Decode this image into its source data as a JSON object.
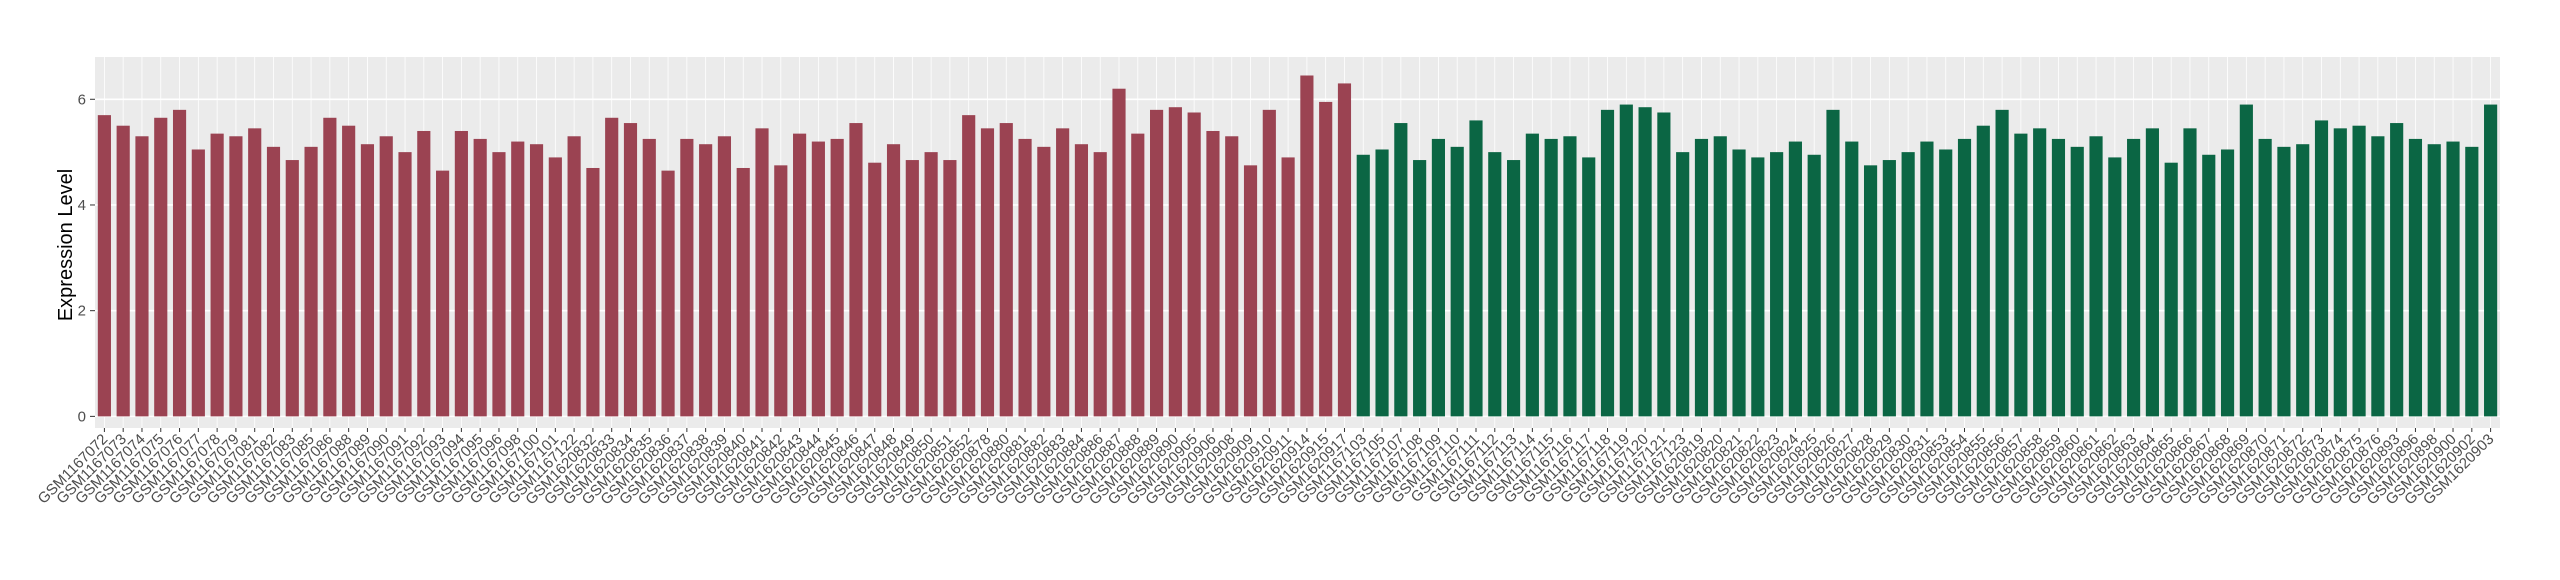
{
  "chart_data": {
    "type": "bar",
    "y_label": "Expression Level",
    "categories": [
      "GSM1167072",
      "GSM1167073",
      "GSM1167074",
      "GSM1167075",
      "GSM1167076",
      "GSM1167077",
      "GSM1167078",
      "GSM1167079",
      "GSM1167081",
      "GSM1167082",
      "GSM1167083",
      "GSM1167085",
      "GSM1167086",
      "GSM1167088",
      "GSM1167089",
      "GSM1167090",
      "GSM1167091",
      "GSM1167092",
      "GSM1167093",
      "GSM1167094",
      "GSM1167095",
      "GSM1167096",
      "GSM1167098",
      "GSM1167100",
      "GSM1167101",
      "GSM1167122",
      "GSM1620832",
      "GSM1620833",
      "GSM1620834",
      "GSM1620835",
      "GSM1620836",
      "GSM1620837",
      "GSM1620838",
      "GSM1620839",
      "GSM1620840",
      "GSM1620841",
      "GSM1620842",
      "GSM1620843",
      "GSM1620844",
      "GSM1620845",
      "GSM1620846",
      "GSM1620847",
      "GSM1620848",
      "GSM1620849",
      "GSM1620850",
      "GSM1620851",
      "GSM1620852",
      "GSM1620878",
      "GSM1620880",
      "GSM1620881",
      "GSM1620882",
      "GSM1620883",
      "GSM1620884",
      "GSM1620886",
      "GSM1620887",
      "GSM1620888",
      "GSM1620889",
      "GSM1620890",
      "GSM1620905",
      "GSM1620906",
      "GSM1620908",
      "GSM1620909",
      "GSM1620910",
      "GSM1620911",
      "GSM1620914",
      "GSM1620915",
      "GSM1620917",
      "GSM1167103",
      "GSM1167105",
      "GSM1167107",
      "GSM1167108",
      "GSM1167109",
      "GSM1167110",
      "GSM1167111",
      "GSM1167112",
      "GSM1167113",
      "GSM1167114",
      "GSM1167115",
      "GSM1167116",
      "GSM1167117",
      "GSM1167118",
      "GSM1167119",
      "GSM1167120",
      "GSM1167121",
      "GSM1167123",
      "GSM1620819",
      "GSM1620820",
      "GSM1620821",
      "GSM1620822",
      "GSM1620823",
      "GSM1620824",
      "GSM1620825",
      "GSM1620826",
      "GSM1620827",
      "GSM1620828",
      "GSM1620829",
      "GSM1620830",
      "GSM1620831",
      "GSM1620853",
      "GSM1620854",
      "GSM1620855",
      "GSM1620856",
      "GSM1620857",
      "GSM1620858",
      "GSM1620859",
      "GSM1620860",
      "GSM1620861",
      "GSM1620862",
      "GSM1620863",
      "GSM1620864",
      "GSM1620865",
      "GSM1620866",
      "GSM1620867",
      "GSM1620868",
      "GSM1620869",
      "GSM1620870",
      "GSM1620871",
      "GSM1620872",
      "GSM1620873",
      "GSM1620874",
      "GSM1620875",
      "GSM1620876",
      "GSM1620893",
      "GSM1620896",
      "GSM1620898",
      "GSM1620900",
      "GSM1620902",
      "GSM1620903"
    ],
    "series": [
      {
        "color": "#9b4352",
        "values": [
          5.7,
          5.5,
          5.3,
          5.65,
          5.8,
          5.05,
          5.35,
          5.3,
          5.45,
          5.1,
          4.85,
          5.1,
          5.65,
          5.5,
          5.15,
          5.3,
          5.0,
          5.4,
          4.65,
          5.4,
          5.25,
          5.0,
          5.2,
          5.15,
          4.9,
          5.3,
          4.7,
          5.65,
          5.55,
          5.25,
          4.65,
          5.25,
          5.15,
          5.3,
          4.7,
          5.45,
          4.75,
          5.35,
          5.2,
          5.25,
          5.55,
          4.8,
          5.15,
          4.85,
          5.0,
          4.85,
          5.7,
          5.45,
          5.55,
          5.25,
          5.1,
          5.45,
          5.15,
          5.0,
          6.2,
          5.35,
          5.8,
          5.85,
          5.75,
          5.4,
          5.3,
          4.75,
          5.8,
          4.9,
          6.45,
          5.95,
          6.3,
          null,
          null,
          null,
          null,
          null,
          null,
          null,
          null,
          null,
          null,
          null,
          null,
          null,
          null,
          null,
          null,
          null,
          null,
          null,
          null,
          null,
          null,
          null,
          null,
          null,
          null,
          null,
          null,
          null,
          null,
          null,
          null,
          null,
          null,
          null,
          null,
          null,
          null,
          null,
          null,
          null,
          null,
          null,
          null,
          null,
          null,
          null,
          null,
          null,
          null,
          null,
          null,
          null,
          null,
          null,
          null,
          null,
          null,
          null,
          null,
          null
        ]
      },
      {
        "color": "#0b6644",
        "values": [
          null,
          null,
          null,
          null,
          null,
          null,
          null,
          null,
          null,
          null,
          null,
          null,
          null,
          null,
          null,
          null,
          null,
          null,
          null,
          null,
          null,
          null,
          null,
          null,
          null,
          null,
          null,
          null,
          null,
          null,
          null,
          null,
          null,
          null,
          null,
          null,
          null,
          null,
          null,
          null,
          null,
          null,
          null,
          null,
          null,
          null,
          null,
          null,
          null,
          null,
          null,
          null,
          null,
          null,
          null,
          null,
          null,
          null,
          null,
          null,
          null,
          null,
          null,
          null,
          null,
          null,
          null,
          4.95,
          5.05,
          5.55,
          4.85,
          5.25,
          5.1,
          5.6,
          5.0,
          4.85,
          5.35,
          5.25,
          5.3,
          4.9,
          5.8,
          5.9,
          5.85,
          5.75,
          5.0,
          5.25,
          5.3,
          5.05,
          4.9,
          5.0,
          5.2,
          4.95,
          5.8,
          5.2,
          4.75,
          4.85,
          5.0,
          5.2,
          5.05,
          5.25,
          5.5,
          5.8,
          5.35,
          5.45,
          5.25,
          5.1,
          5.3,
          4.9,
          5.25,
          5.45,
          4.8,
          5.45,
          4.95,
          5.05,
          5.9,
          5.25,
          5.1,
          5.15,
          5.6,
          5.45,
          5.5,
          5.3,
          5.55,
          5.25,
          5.15,
          5.2,
          5.1,
          5.9
        ]
      }
    ],
    "ylim": [
      -0.22,
      6.8
    ],
    "yticks": [
      0,
      2,
      4,
      6
    ],
    "grid": true,
    "background": "#ebebeb"
  }
}
